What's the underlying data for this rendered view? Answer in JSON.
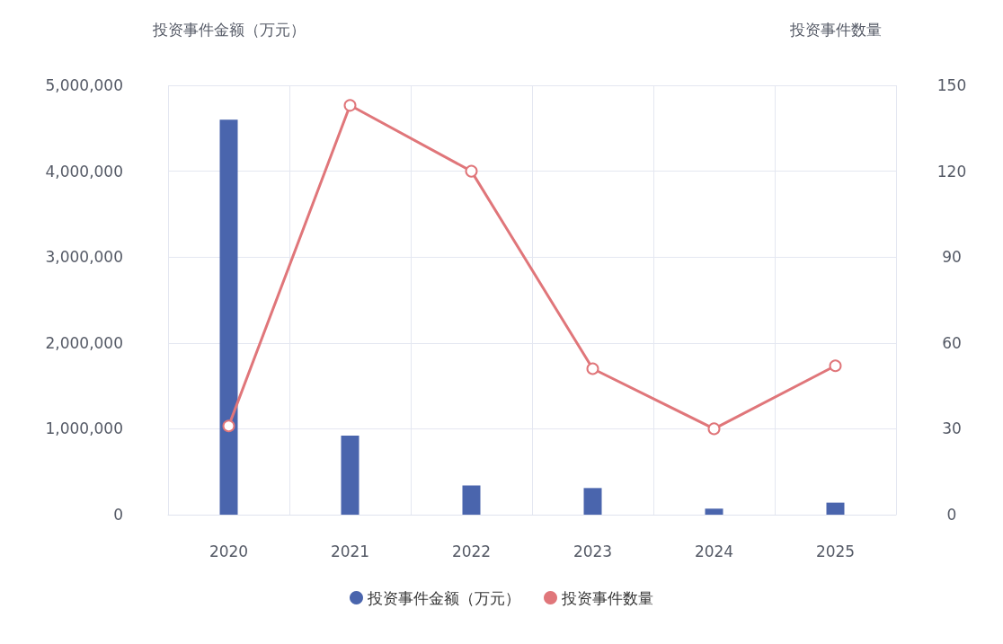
{
  "chart_data": {
    "type": "bar",
    "categories": [
      "2020",
      "2021",
      "2022",
      "2023",
      "2024",
      "2025"
    ],
    "ylabel": "投资事件金额（万元）",
    "y2label": "投资事件数量",
    "series": [
      {
        "name": "投资事件金额（万元）",
        "color": "#4a65ad",
        "values": [
          4600000,
          920000,
          340000,
          310000,
          70000,
          140000
        ]
      },
      {
        "name": "投资事件数量",
        "type": "line",
        "axis": "y2",
        "color": "#e0767a",
        "values": [
          31,
          143,
          120,
          51,
          30,
          52
        ]
      }
    ],
    "ylim": [
      0,
      5000000
    ],
    "yticks": [
      {
        "value": 0,
        "label": "0"
      },
      {
        "value": 1000000,
        "label": "1,000,000"
      },
      {
        "value": 2000000,
        "label": "2,000,000"
      },
      {
        "value": 3000000,
        "label": "3,000,000"
      },
      {
        "value": 4000000,
        "label": "4,000,000"
      },
      {
        "value": 5000000,
        "label": "5,000,000"
      }
    ],
    "y2lim": [
      0,
      150
    ],
    "y2ticks": [
      0,
      30,
      60,
      90,
      120,
      150
    ],
    "grid": true,
    "legend": "bottom",
    "marker": "circle",
    "line_style": "solid"
  }
}
